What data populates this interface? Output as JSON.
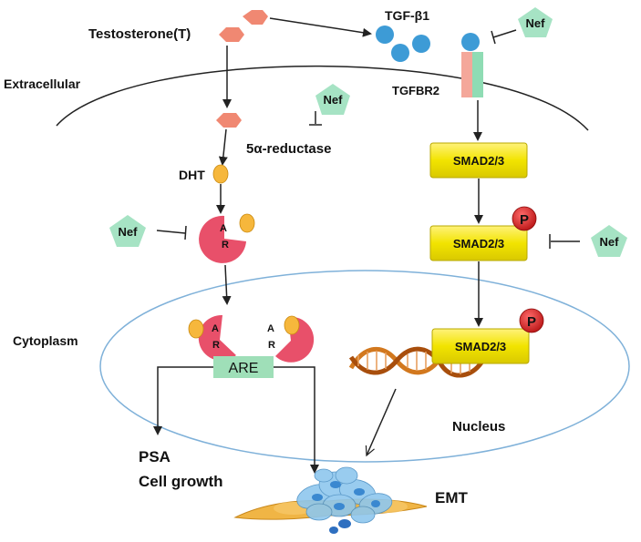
{
  "labels": {
    "testosterone": "Testosterone(T)",
    "tgf_beta1": "TGF-β1",
    "extracellular": "Extracellular",
    "tgfbr2": "TGFBR2",
    "five_alpha_reductase": "5α-reductase",
    "dht": "DHT",
    "cytoplasm": "Cytoplasm",
    "nucleus": "Nucleus",
    "psa": "PSA",
    "cell_growth": "Cell growth",
    "emt": "EMT",
    "are": "ARE"
  },
  "nef": {
    "top": "Nef",
    "middle": "Nef",
    "left": "Nef",
    "right": "Nef"
  },
  "smad": {
    "box1": "SMAD2/3",
    "box2": "SMAD2/3",
    "box3": "SMAD2/3"
  },
  "phospho": {
    "p1": "P",
    "p2": "P"
  },
  "ar": {
    "a_letter": "A",
    "r_letter": "R"
  },
  "colors": {
    "hormone": "#f08872",
    "tgf_ball": "#3d9bd6",
    "nef": "#a6e3c4",
    "smad": "#f2e400",
    "smad_border": "#b8a800",
    "ar": "#e8506a",
    "ligand": "#f6b73c",
    "are_box": "#9fdfb8",
    "phospho": "#d42020",
    "nucleus_outline": "#7fb1d9",
    "dna": "#d2781e",
    "cell": "#f0b545",
    "emt_cell": "#8ec7ee"
  }
}
